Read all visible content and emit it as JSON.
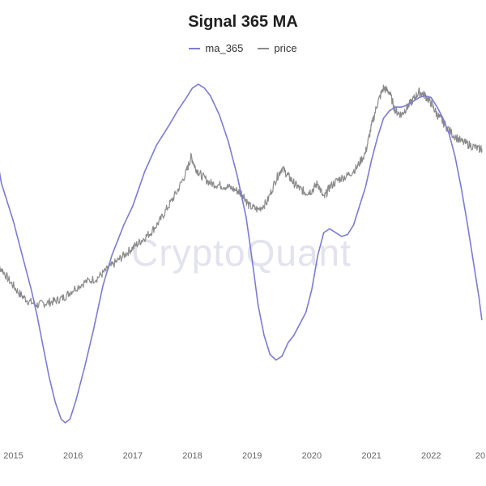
{
  "chart_data": {
    "type": "line",
    "title": "Signal 365 MA",
    "xlabel": "",
    "ylabel": "",
    "legend_position": "top-center",
    "grid": false,
    "x_ticks": [
      "2015",
      "2016",
      "2017",
      "2018",
      "2019",
      "2020",
      "2021",
      "2022",
      "20"
    ],
    "watermark": "CryptoQuant",
    "series": [
      {
        "name": "ma_365",
        "color": "#7b7bd6",
        "points": [
          [
            2014.6,
            0.8
          ],
          [
            2014.7,
            0.68
          ],
          [
            2014.8,
            0.5
          ],
          [
            2014.9,
            0.4
          ],
          [
            2015.0,
            0.3
          ],
          [
            2015.1,
            0.18
          ],
          [
            2015.2,
            0.06
          ],
          [
            2015.3,
            -0.06
          ],
          [
            2015.4,
            -0.2
          ],
          [
            2015.5,
            -0.36
          ],
          [
            2015.6,
            -0.52
          ],
          [
            2015.7,
            -0.65
          ],
          [
            2015.8,
            -0.74
          ],
          [
            2015.87,
            -0.76
          ],
          [
            2015.95,
            -0.74
          ],
          [
            2016.05,
            -0.64
          ],
          [
            2016.2,
            -0.46
          ],
          [
            2016.35,
            -0.26
          ],
          [
            2016.5,
            -0.04
          ],
          [
            2016.65,
            0.12
          ],
          [
            2016.85,
            0.28
          ],
          [
            2017.0,
            0.38
          ],
          [
            2017.2,
            0.56
          ],
          [
            2017.4,
            0.7
          ],
          [
            2017.6,
            0.8
          ],
          [
            2017.75,
            0.88
          ],
          [
            2017.9,
            0.95
          ],
          [
            2018.0,
            1.0
          ],
          [
            2018.1,
            1.02
          ],
          [
            2018.2,
            1.0
          ],
          [
            2018.3,
            0.96
          ],
          [
            2018.45,
            0.86
          ],
          [
            2018.6,
            0.72
          ],
          [
            2018.75,
            0.54
          ],
          [
            2018.9,
            0.32
          ],
          [
            2019.0,
            0.1
          ],
          [
            2019.1,
            -0.14
          ],
          [
            2019.2,
            -0.3
          ],
          [
            2019.3,
            -0.4
          ],
          [
            2019.4,
            -0.43
          ],
          [
            2019.5,
            -0.41
          ],
          [
            2019.6,
            -0.34
          ],
          [
            2019.7,
            -0.3
          ],
          [
            2019.8,
            -0.24
          ],
          [
            2019.9,
            -0.18
          ],
          [
            2020.0,
            -0.06
          ],
          [
            2020.1,
            0.12
          ],
          [
            2020.2,
            0.24
          ],
          [
            2020.3,
            0.26
          ],
          [
            2020.4,
            0.24
          ],
          [
            2020.5,
            0.22
          ],
          [
            2020.6,
            0.23
          ],
          [
            2020.7,
            0.28
          ],
          [
            2020.8,
            0.38
          ],
          [
            2020.9,
            0.48
          ],
          [
            2021.0,
            0.62
          ],
          [
            2021.1,
            0.74
          ],
          [
            2021.2,
            0.84
          ],
          [
            2021.3,
            0.88
          ],
          [
            2021.4,
            0.9
          ],
          [
            2021.5,
            0.9
          ],
          [
            2021.6,
            0.91
          ],
          [
            2021.7,
            0.93
          ],
          [
            2021.8,
            0.95
          ],
          [
            2021.9,
            0.96
          ],
          [
            2022.0,
            0.95
          ],
          [
            2022.1,
            0.9
          ],
          [
            2022.2,
            0.84
          ],
          [
            2022.3,
            0.76
          ],
          [
            2022.4,
            0.64
          ],
          [
            2022.5,
            0.48
          ],
          [
            2022.6,
            0.3
          ],
          [
            2022.7,
            0.1
          ],
          [
            2022.8,
            -0.1
          ],
          [
            2022.85,
            -0.22
          ]
        ]
      },
      {
        "name": "price",
        "color": "#8a8a8a",
        "points": [
          [
            2014.6,
            0.1
          ],
          [
            2014.8,
            0.05
          ],
          [
            2014.95,
            -0.02
          ],
          [
            2015.1,
            -0.08
          ],
          [
            2015.25,
            -0.12
          ],
          [
            2015.4,
            -0.14
          ],
          [
            2015.55,
            -0.13
          ],
          [
            2015.7,
            -0.12
          ],
          [
            2015.85,
            -0.1
          ],
          [
            2016.0,
            -0.06
          ],
          [
            2016.2,
            -0.02
          ],
          [
            2016.4,
            0.0
          ],
          [
            2016.55,
            0.04
          ],
          [
            2016.7,
            0.08
          ],
          [
            2016.85,
            0.12
          ],
          [
            2017.0,
            0.16
          ],
          [
            2017.15,
            0.2
          ],
          [
            2017.3,
            0.24
          ],
          [
            2017.45,
            0.3
          ],
          [
            2017.6,
            0.38
          ],
          [
            2017.75,
            0.46
          ],
          [
            2017.9,
            0.56
          ],
          [
            2017.98,
            0.64
          ],
          [
            2018.05,
            0.58
          ],
          [
            2018.15,
            0.54
          ],
          [
            2018.3,
            0.5
          ],
          [
            2018.45,
            0.49
          ],
          [
            2018.6,
            0.48
          ],
          [
            2018.75,
            0.46
          ],
          [
            2018.85,
            0.44
          ],
          [
            2018.95,
            0.38
          ],
          [
            2019.1,
            0.36
          ],
          [
            2019.25,
            0.4
          ],
          [
            2019.4,
            0.52
          ],
          [
            2019.5,
            0.58
          ],
          [
            2019.6,
            0.54
          ],
          [
            2019.7,
            0.5
          ],
          [
            2019.8,
            0.47
          ],
          [
            2019.9,
            0.45
          ],
          [
            2020.0,
            0.46
          ],
          [
            2020.1,
            0.5
          ],
          [
            2020.2,
            0.42
          ],
          [
            2020.3,
            0.48
          ],
          [
            2020.45,
            0.52
          ],
          [
            2020.6,
            0.54
          ],
          [
            2020.75,
            0.58
          ],
          [
            2020.9,
            0.66
          ],
          [
            2021.0,
            0.8
          ],
          [
            2021.1,
            0.92
          ],
          [
            2021.2,
            1.0
          ],
          [
            2021.3,
            0.98
          ],
          [
            2021.4,
            0.88
          ],
          [
            2021.5,
            0.86
          ],
          [
            2021.6,
            0.9
          ],
          [
            2021.7,
            0.94
          ],
          [
            2021.8,
            0.98
          ],
          [
            2021.9,
            0.96
          ],
          [
            2022.0,
            0.92
          ],
          [
            2022.1,
            0.86
          ],
          [
            2022.2,
            0.82
          ],
          [
            2022.35,
            0.76
          ],
          [
            2022.5,
            0.72
          ],
          [
            2022.65,
            0.7
          ],
          [
            2022.8,
            0.68
          ],
          [
            2022.85,
            0.68
          ]
        ]
      }
    ]
  }
}
